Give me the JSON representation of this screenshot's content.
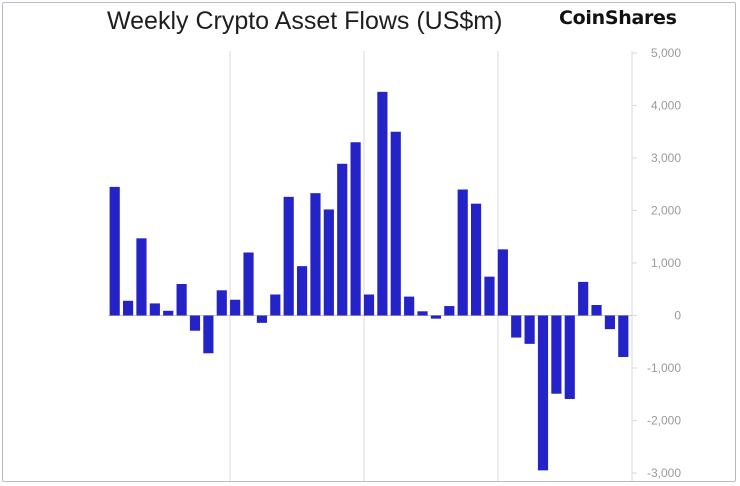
{
  "title": "Weekly Crypto Asset Flows (US$m)",
  "brand": "CoinShares",
  "colors": {
    "bar": "#2323c8",
    "grid": "#d9d9d9",
    "tick_text": "#9a9a9a"
  },
  "chart_data": {
    "type": "bar",
    "title": "Weekly Crypto Asset Flows (US$m)",
    "xlabel": "",
    "ylabel": "",
    "ylim": [
      -3000,
      5000
    ],
    "y_axis_position": "right",
    "yticks": [
      5000,
      4000,
      3000,
      2000,
      1000,
      0,
      -1000,
      -2000,
      -3000
    ],
    "ytick_labels": [
      "5,000",
      "4,000",
      "3,000",
      "2,000",
      "1,000",
      "0",
      "-1,000",
      "-2,000",
      "-3,000"
    ],
    "grid": "vertical lines only",
    "values": [
      2450,
      280,
      1470,
      230,
      90,
      600,
      -290,
      -720,
      480,
      300,
      1200,
      -140,
      400,
      2260,
      940,
      2330,
      2020,
      2890,
      3300,
      400,
      4260,
      3500,
      360,
      80,
      -60,
      180,
      2400,
      2130,
      740,
      1260,
      -420,
      -540,
      -2950,
      -1490,
      -1590,
      640,
      200,
      -260,
      -790
    ]
  }
}
